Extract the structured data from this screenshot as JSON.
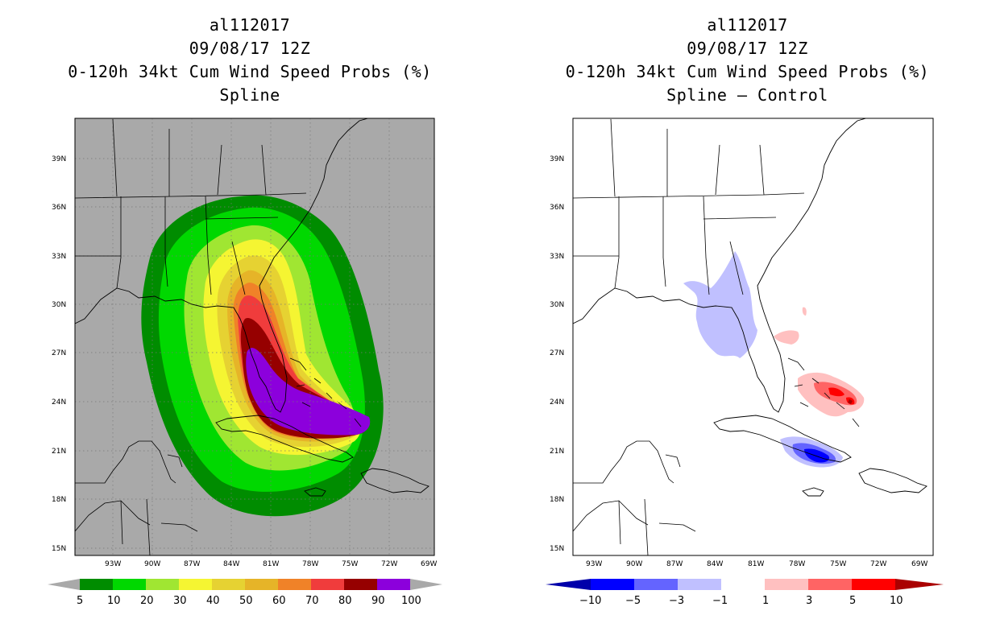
{
  "colors": {
    "background_left": "#a9a9a9",
    "prob_palette": [
      "#008c00",
      "#00d800",
      "#a0e632",
      "#f5f532",
      "#e6d232",
      "#e6b428",
      "#f08228",
      "#f03c3c",
      "#960000",
      "#8c00dc"
    ],
    "diff_palette": [
      "#0000aa",
      "#0000ff",
      "#6464ff",
      "#c0c0ff",
      "#ffffff",
      "#ffc0c0",
      "#ff6464",
      "#ff0000",
      "#aa0000"
    ]
  },
  "left_panel": {
    "title_line1": "al112017",
    "title_line2": "09/08/17 12Z",
    "title_line3": "0-120h 34kt Cum Wind Speed Probs (%)",
    "title_line4": "Spline",
    "colorbar_labels": [
      "5",
      "10",
      "20",
      "30",
      "40",
      "50",
      "60",
      "70",
      "80",
      "90",
      "100"
    ]
  },
  "right_panel": {
    "title_line1": "al112017",
    "title_line2": "09/08/17 12Z",
    "title_line3": "0-120h 34kt Cum Wind Speed Probs (%)",
    "title_line4": "Spline – Control",
    "colorbar_labels": [
      "−10",
      "−5",
      "−3",
      "−1",
      "1",
      "3",
      "5",
      "10"
    ]
  },
  "axes": {
    "lat_labels": [
      "39N",
      "36N",
      "33N",
      "30N",
      "27N",
      "24N",
      "21N",
      "18N",
      "15N"
    ],
    "lon_labels": [
      "93W",
      "90W",
      "87W",
      "84W",
      "81W",
      "78W",
      "75W",
      "72W",
      "69W"
    ]
  }
}
